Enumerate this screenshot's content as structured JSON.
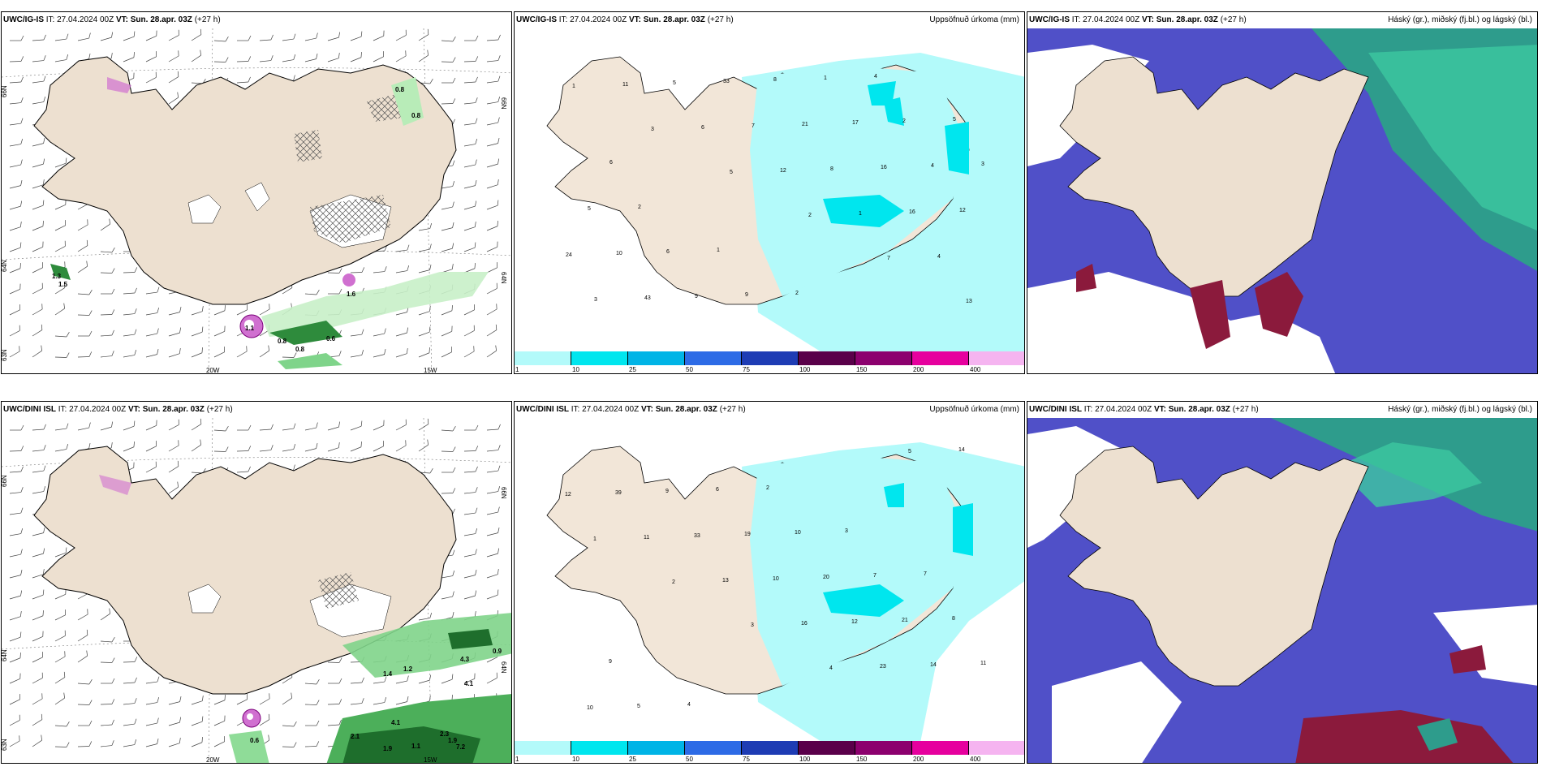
{
  "rows": [
    {
      "model": "UWC/IG-IS",
      "it": "27.04.2024 00Z",
      "vt": "Sun. 28.apr. 03Z",
      "lead": "(+27 h)",
      "vt_label": "VT:",
      "it_label": "IT:"
    },
    {
      "model": "UWC/DINI ISL",
      "it": "27.04.2024 00Z",
      "vt": "Sun. 28.apr. 03Z",
      "lead": "(+27 h)",
      "vt_label": "VT:",
      "it_label": "IT:"
    }
  ],
  "precip_title": "Uppsöfnuð úrkoma (mm)",
  "cloud_title": "Háský (gr.), miðský (fj.bl.) og lágský (bl.)",
  "axis": {
    "lat66": "66N",
    "lat64": "64N",
    "lat63": "63N",
    "lon20": "20W",
    "lon15": "15W"
  },
  "colorbar": {
    "ticks": [
      "1",
      "10",
      "25",
      "50",
      "75",
      "100",
      "150",
      "200",
      "400"
    ],
    "colors": [
      "#b3fafa",
      "#00e6ee",
      "#00b4e6",
      "#2d6be6",
      "#1e3cb4",
      "#5a004a",
      "#8c006e",
      "#e6009e",
      "#f5b4f0"
    ]
  },
  "wind_labels_top": [
    "0.8",
    "0.8",
    "1.3",
    "1.5",
    "1.6",
    "0.8",
    "0.8",
    "0.6",
    "1.0",
    "1.1"
  ],
  "wind_labels_bottom": [
    "0.9",
    "4.3",
    "4.1",
    "1.4",
    "1.2",
    "4.1",
    "2.3",
    "1.9",
    "7.2",
    "1.1",
    "2.1",
    "1.9",
    "0.6"
  ],
  "precip_top_numbers": [
    "1",
    "3",
    "5",
    "2",
    "7",
    "13",
    "11",
    "6",
    "12",
    "1",
    "4",
    "3",
    "5",
    "7",
    "8",
    "16",
    "24",
    "43",
    "33",
    "21",
    "16",
    "12",
    "10",
    "9",
    "8",
    "17",
    "4",
    "5",
    "6",
    "9",
    "1",
    "2",
    "3",
    "2",
    "1",
    "2",
    "4",
    "5",
    "6"
  ],
  "precip_bottom_numbers": [
    "1",
    "2",
    "3",
    "4",
    "5",
    "12",
    "11",
    "13",
    "16",
    "23",
    "14",
    "39",
    "33",
    "10",
    "12",
    "14",
    "10",
    "9",
    "19",
    "20",
    "21",
    "11",
    "5",
    "6",
    "10",
    "7",
    "8",
    "9",
    "4",
    "2",
    "3",
    "7"
  ]
}
